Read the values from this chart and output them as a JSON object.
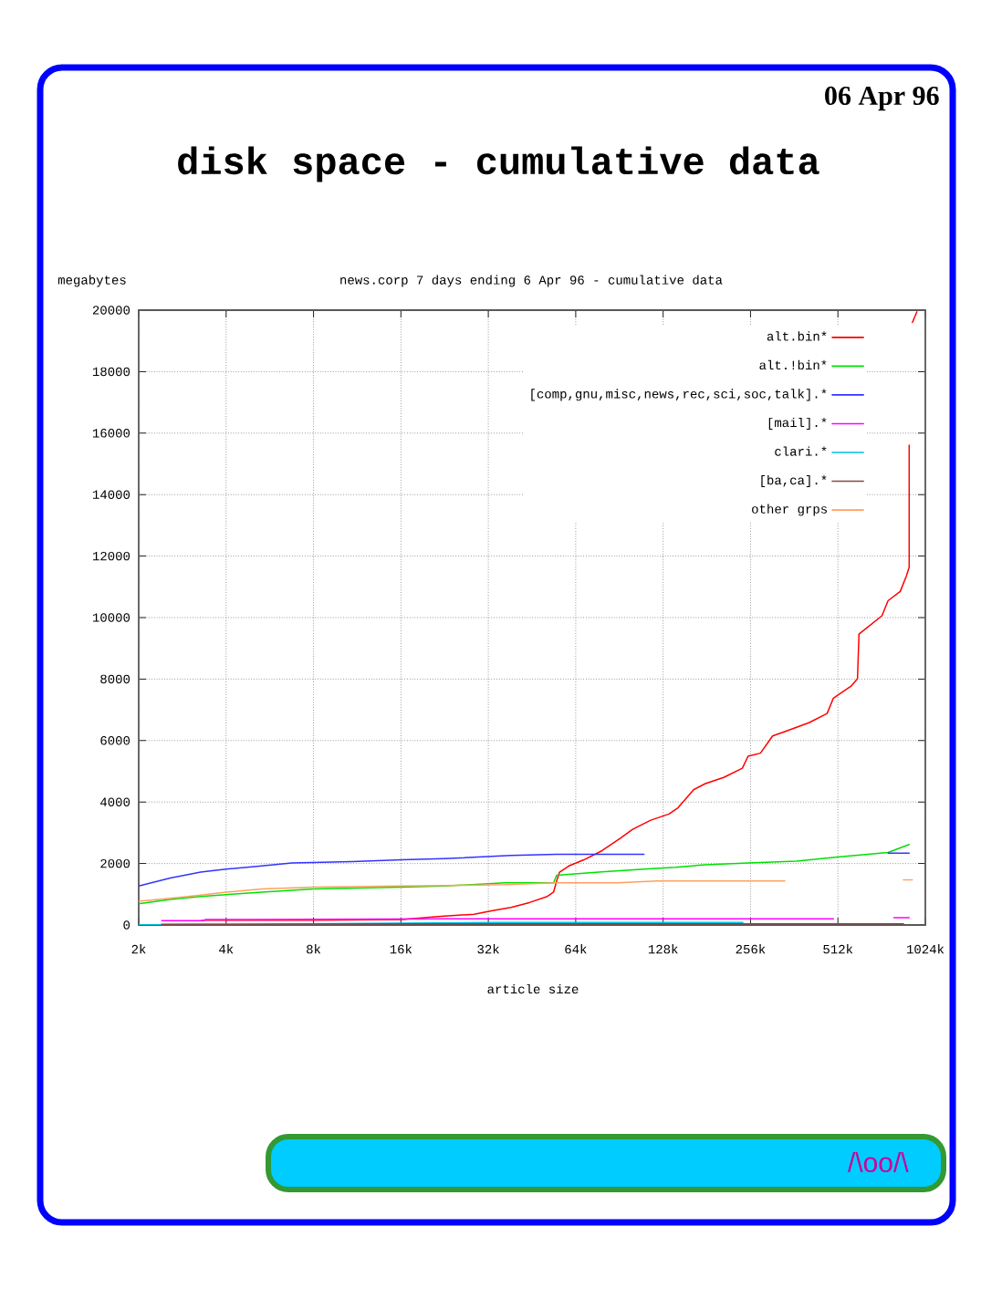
{
  "chart_data": {
    "type": "line",
    "title": "disk space - cumulative data",
    "subtitle": "news.corp 7 days ending 6 Apr 96 - cumulative data",
    "xlabel": "article size",
    "ylabel": "megabytes",
    "annotations": [
      "06 Apr 96",
      "/\\oo/\\"
    ],
    "log": "x",
    "grid": true,
    "legend": "top right",
    "xlim": [
      2,
      1024
    ],
    "ylim": [
      0,
      20000
    ],
    "xticks": [
      {
        "value": 2,
        "label": "2k"
      },
      {
        "value": 4,
        "label": "4k"
      },
      {
        "value": 8,
        "label": "8k"
      },
      {
        "value": 16,
        "label": "16k"
      },
      {
        "value": 32,
        "label": "32k"
      },
      {
        "value": 64,
        "label": "64k"
      },
      {
        "value": 128,
        "label": "128k"
      },
      {
        "value": 256,
        "label": "256k"
      },
      {
        "value": 512,
        "label": "512k"
      },
      {
        "value": 1024,
        "label": "1024k"
      }
    ],
    "yticks": [
      0,
      2000,
      4000,
      6000,
      8000,
      10000,
      12000,
      14000,
      16000,
      18000,
      20000
    ],
    "series": [
      {
        "name": "alt.bin*",
        "color": "#ff0000",
        "x": [
          3.3,
          8,
          16.1,
          22,
          28.6,
          33.1,
          38.3,
          44.3,
          51.1,
          53.7,
          55,
          56.3,
          60.6,
          68.3,
          78.9,
          91.2,
          100.5,
          116,
          134,
          144,
          163,
          179,
          207,
          240,
          251,
          277,
          305,
          336,
          407,
          470,
          494,
          570,
          598,
          605,
          726,
          762,
          839,
          881,
          901,
          901,
          912,
          924,
          958
        ],
        "values": [
          150,
          150,
          180,
          280,
          350,
          470,
          570,
          730,
          930,
          1070,
          1430,
          1720,
          1920,
          2120,
          2420,
          2820,
          3110,
          3410,
          3610,
          3810,
          4400,
          4600,
          4800,
          5100,
          5490,
          5590,
          6150,
          6290,
          6580,
          6880,
          7380,
          7780,
          8010,
          9460,
          10060,
          10550,
          10850,
          11350,
          11640,
          15610,
          null,
          19600,
          19950
        ]
      },
      {
        "name": "alt.!bin*",
        "color": "#00e000",
        "x": [
          2,
          2.57,
          3.27,
          4,
          5.3,
          8,
          16.1,
          22.5,
          36.5,
          53.7,
          55,
          78.9,
          110,
          141,
          179,
          251,
          369,
          520,
          762,
          901
        ],
        "values": [
          690,
          830,
          930,
          990,
          1070,
          1170,
          1230,
          1270,
          1370,
          1370,
          1620,
          1730,
          1820,
          1880,
          1960,
          2020,
          2080,
          2220,
          2360,
          2620
        ]
      },
      {
        "name": "[comp,gnu,misc,news,rec,sci,soc,talk].*",
        "color": "#3333ff",
        "x": [
          2,
          2.57,
          3.27,
          4,
          5.3,
          6.74,
          10.9,
          16.1,
          22.5,
          38.3,
          55,
          110,
          300,
          762,
          901
        ],
        "values": [
          1270,
          1530,
          1720,
          1820,
          1920,
          2020,
          2060,
          2120,
          2160,
          2260,
          2300,
          2300,
          null,
          2340,
          2340
        ]
      },
      {
        "name": "[mail].*",
        "color": "#ff00ff",
        "x": [
          2.4,
          3.35,
          3.4,
          4.8,
          23.1,
          494,
          650,
          798,
          901
        ],
        "values": [
          140,
          140,
          180,
          180,
          200,
          200,
          null,
          240,
          240
        ]
      },
      {
        "name": "clari.*",
        "color": "#00c0e0",
        "x": [
          2,
          3.4,
          34.5,
          241
        ],
        "values": [
          10,
          20,
          80,
          80
        ]
      },
      {
        "name": "[ba,ca].*",
        "color": "#804848",
        "x": [
          2.4,
          16,
          861
        ],
        "values": [
          20,
          40,
          40
        ]
      },
      {
        "name": "other grps",
        "color": "#ffa060",
        "x": [
          2,
          2.57,
          3.27,
          4,
          5.3,
          8,
          16.1,
          36.5,
          55,
          89,
          122,
          336,
          500,
          861,
          924
        ],
        "values": [
          770,
          870,
          970,
          1070,
          1170,
          1230,
          1270,
          1310,
          1370,
          1370,
          1430,
          1430,
          null,
          1470,
          1470
        ]
      }
    ]
  }
}
